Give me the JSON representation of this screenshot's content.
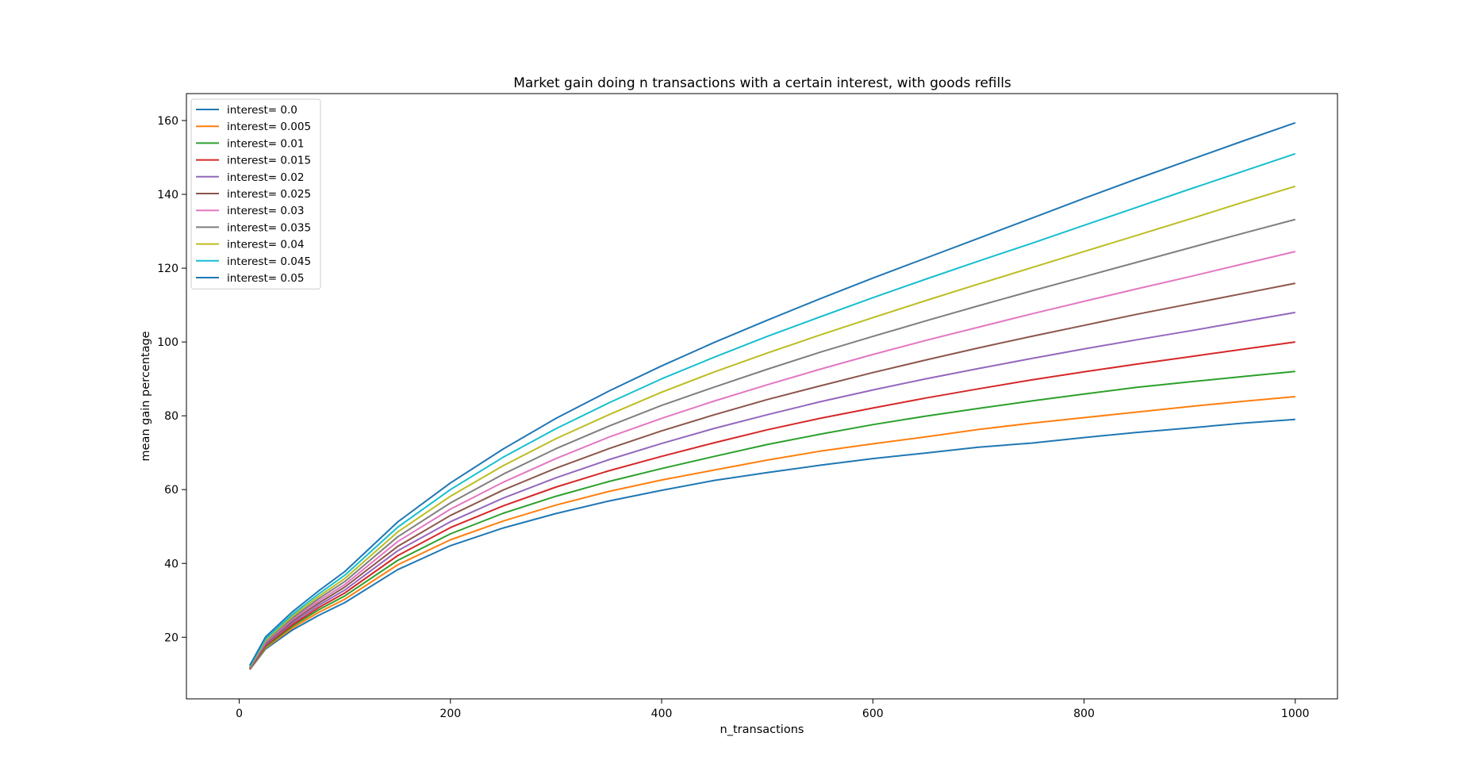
{
  "chart_data": {
    "type": "line",
    "title": "Market gain doing n transactions with a certain interest, with goods refills",
    "xlabel": "n_transactions",
    "ylabel": "mean gain percentage",
    "xlim": [
      -50,
      1040
    ],
    "ylim": [
      3.3,
      167.3
    ],
    "xticks": [
      0,
      200,
      400,
      600,
      800,
      1000
    ],
    "yticks": [
      20,
      40,
      60,
      80,
      100,
      120,
      140,
      160
    ],
    "grid": false,
    "legend_position": "top-left",
    "x": [
      10,
      25,
      50,
      75,
      100,
      150,
      200,
      250,
      300,
      350,
      400,
      450,
      500,
      550,
      600,
      650,
      700,
      750,
      800,
      850,
      900,
      950,
      1000
    ],
    "series": [
      {
        "name": "interest= 0.0",
        "color": "#1f77b4",
        "values": [
          11.2,
          16.8,
          21.9,
          25.9,
          29.4,
          38.3,
          44.8,
          49.6,
          53.5,
          56.9,
          59.8,
          62.5,
          64.6,
          66.6,
          68.4,
          69.9,
          71.5,
          72.6,
          74.1,
          75.5,
          76.7,
          78.0,
          79.0
        ]
      },
      {
        "name": "interest= 0.005",
        "color": "#ff7f0e",
        "values": [
          11.3,
          17.1,
          22.4,
          26.7,
          30.3,
          39.6,
          46.4,
          51.5,
          55.8,
          59.5,
          62.6,
          65.3,
          68.0,
          70.4,
          72.4,
          74.3,
          76.3,
          78.0,
          79.5,
          81.0,
          82.5,
          83.9,
          85.2
        ]
      },
      {
        "name": "interest= 0.01",
        "color": "#2ca02c",
        "values": [
          11.4,
          17.4,
          22.9,
          27.4,
          31.2,
          40.8,
          48.0,
          53.6,
          58.2,
          62.2,
          65.7,
          69.0,
          72.2,
          75.0,
          77.6,
          79.9,
          82.0,
          84.0,
          85.9,
          87.7,
          89.2,
          90.6,
          92.0
        ]
      },
      {
        "name": "interest= 0.015",
        "color": "#d62728",
        "values": [
          11.5,
          17.7,
          23.3,
          28.0,
          32.0,
          42.1,
          49.7,
          55.6,
          60.7,
          65.1,
          69.0,
          72.7,
          76.2,
          79.3,
          82.1,
          84.8,
          87.3,
          89.7,
          91.9,
          94.0,
          96.0,
          98.0,
          100.0
        ]
      },
      {
        "name": "interest= 0.02",
        "color": "#9467bd",
        "values": [
          11.6,
          18.0,
          23.8,
          28.6,
          32.8,
          43.4,
          51.3,
          57.7,
          63.2,
          68.1,
          72.5,
          76.6,
          80.3,
          83.8,
          87.0,
          90.0,
          92.8,
          95.5,
          98.1,
          100.6,
          103.0,
          105.5,
          108.0
        ]
      },
      {
        "name": "interest= 0.025",
        "color": "#8c564b",
        "values": [
          11.7,
          18.3,
          24.3,
          29.2,
          33.6,
          44.6,
          53.0,
          59.9,
          65.8,
          71.1,
          75.9,
          80.3,
          84.4,
          88.1,
          91.7,
          95.1,
          98.4,
          101.5,
          104.5,
          107.5,
          110.3,
          113.1,
          115.9
        ]
      },
      {
        "name": "interest= 0.03",
        "color": "#e377c2",
        "values": [
          11.8,
          18.6,
          24.7,
          29.8,
          34.3,
          45.9,
          54.7,
          62.0,
          68.4,
          74.2,
          79.3,
          84.0,
          88.4,
          92.6,
          96.6,
          100.4,
          104.0,
          107.6,
          111.0,
          114.4,
          117.7,
          121.1,
          124.5
        ]
      },
      {
        "name": "interest= 0.035",
        "color": "#7f7f7f",
        "values": [
          11.9,
          18.9,
          25.1,
          30.4,
          35.1,
          47.2,
          56.4,
          64.2,
          71.1,
          77.2,
          82.8,
          87.8,
          92.6,
          97.2,
          101.5,
          105.7,
          109.8,
          113.8,
          117.7,
          121.6,
          125.5,
          129.4,
          133.2
        ]
      },
      {
        "name": "interest= 0.04",
        "color": "#bcbd22",
        "values": [
          12.0,
          19.2,
          25.6,
          31.0,
          35.9,
          48.5,
          58.2,
          66.5,
          73.8,
          80.3,
          86.4,
          91.9,
          97.0,
          101.9,
          106.6,
          111.2,
          115.7,
          120.1,
          124.5,
          128.9,
          133.3,
          137.8,
          142.2
        ]
      },
      {
        "name": "interest= 0.045",
        "color": "#17becf",
        "values": [
          12.2,
          19.6,
          26.1,
          31.7,
          36.8,
          49.8,
          60.0,
          68.8,
          76.5,
          83.5,
          90.0,
          95.9,
          101.5,
          106.8,
          112.0,
          117.0,
          121.9,
          126.7,
          131.6,
          136.5,
          141.4,
          146.2,
          151.0
        ]
      },
      {
        "name": "interest= 0.05",
        "color": "#1f77b4",
        "values": [
          12.4,
          20.1,
          26.8,
          32.5,
          37.8,
          51.2,
          61.8,
          71.0,
          79.3,
          86.7,
          93.5,
          99.9,
          105.9,
          111.7,
          117.3,
          122.7,
          128.1,
          133.5,
          138.9,
          144.2,
          149.3,
          154.4,
          159.4
        ]
      }
    ]
  }
}
